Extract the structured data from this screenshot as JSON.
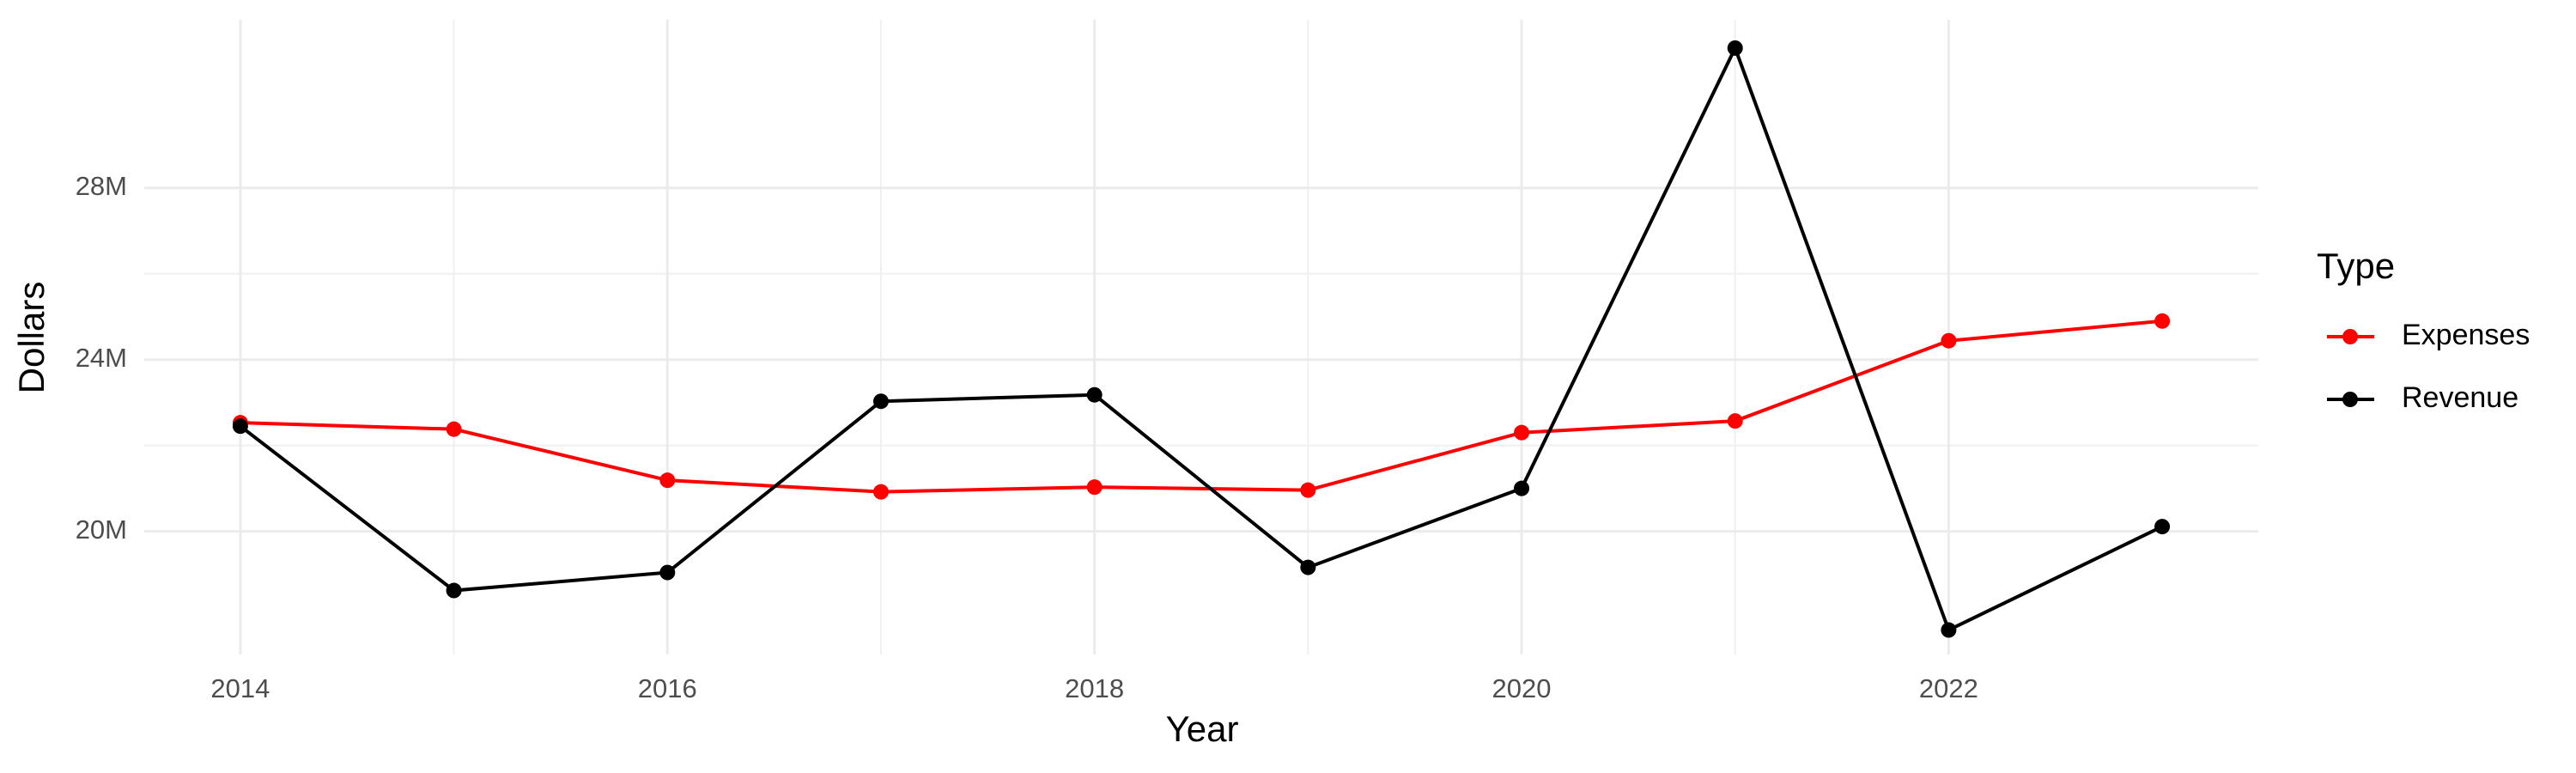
{
  "chart_data": {
    "type": "line",
    "x_label": "Year",
    "y_label": "Dollars",
    "legend_title": "Type",
    "x": [
      2014,
      2015,
      2016,
      2017,
      2018,
      2019,
      2020,
      2021,
      2022,
      2023
    ],
    "series": [
      {
        "name": "Expenses",
        "color": "#ff0000",
        "values": [
          22530000,
          22380000,
          21190000,
          20920000,
          21030000,
          20960000,
          22300000,
          22570000,
          24440000,
          24900000
        ]
      },
      {
        "name": "Revenue",
        "color": "#000000",
        "values": [
          22450000,
          18620000,
          19040000,
          23030000,
          23180000,
          19160000,
          21000000,
          31260000,
          17700000,
          20110000
        ]
      }
    ],
    "xlim": [
      2013.55,
      2023.45
    ],
    "xticks": [
      2014,
      2016,
      2018,
      2020,
      2022
    ],
    "ylim": [
      17130000,
      31920000
    ],
    "yticks": [
      {
        "value": 20000000,
        "label": "20M"
      },
      {
        "value": 24000000,
        "label": "24M"
      },
      {
        "value": 28000000,
        "label": "28M"
      }
    ],
    "grid": true,
    "legend": "right"
  }
}
